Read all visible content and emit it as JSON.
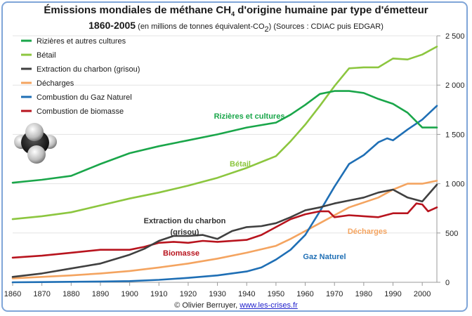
{
  "title_main": "Émissions mondiales de méthane CH",
  "title_sub4": "4",
  "title_end": " d'origine humaine par type d'émetteur",
  "subtitle_years": "1860-2005",
  "subtitle_units": " (en millions de tonnes équivalent-CO",
  "subtitle_sub2": "2",
  "subtitle_sources": ") (Sources : CDIAC puis EDGAR)",
  "credit_text": "© Olivier Berruyer, ",
  "credit_link": "www.les-crises.fr",
  "icon": "methane-molecule-icon",
  "chart_data": {
    "type": "line",
    "title": "Émissions mondiales de méthane CH4 d'origine humaine par type d'émetteur",
    "subtitle": "1860-2005 (en millions de tonnes équivalent-CO2) (Sources : CDIAC puis EDGAR)",
    "xlabel": "",
    "ylabel": "",
    "xlim": [
      1860,
      2005
    ],
    "ylim": [
      0,
      2500
    ],
    "xticks": [
      1860,
      1870,
      1880,
      1890,
      1900,
      1910,
      1920,
      1930,
      1940,
      1950,
      1960,
      1970,
      1980,
      1990,
      2000
    ],
    "yticks": [
      0,
      500,
      1000,
      1500,
      2000,
      2500
    ],
    "ytick_labels": [
      "0",
      "500",
      "1 000",
      "1 500",
      "2 000",
      "2 500"
    ],
    "y_axis_side": "right",
    "grid": "horizontal",
    "legend_position": "top-left",
    "series": [
      {
        "name": "Rizières et autres cultures",
        "color": "#1aa64a",
        "annotation": "Rizières et cultures",
        "x": [
          1860,
          1870,
          1880,
          1890,
          1900,
          1910,
          1920,
          1930,
          1940,
          1950,
          1955,
          1960,
          1965,
          1970,
          1975,
          1980,
          1985,
          1990,
          1995,
          2000,
          2005
        ],
        "values": [
          1010,
          1040,
          1080,
          1200,
          1310,
          1380,
          1440,
          1500,
          1570,
          1620,
          1700,
          1800,
          1910,
          1940,
          1940,
          1920,
          1860,
          1810,
          1720,
          1570,
          1570
        ]
      },
      {
        "name": "Bétail",
        "color": "#8cc63f",
        "annotation": "Bétail",
        "x": [
          1860,
          1870,
          1880,
          1890,
          1900,
          1910,
          1920,
          1930,
          1940,
          1950,
          1955,
          1960,
          1965,
          1970,
          1975,
          1980,
          1985,
          1990,
          1995,
          2000,
          2005
        ],
        "values": [
          640,
          670,
          710,
          780,
          850,
          910,
          980,
          1060,
          1160,
          1280,
          1430,
          1600,
          1790,
          1990,
          2170,
          2180,
          2180,
          2270,
          2260,
          2310,
          2390
        ]
      },
      {
        "name": "Extraction du charbon (grisou)",
        "color": "#404040",
        "annotation": "Extraction du charbon (grisou)",
        "x": [
          1860,
          1870,
          1880,
          1890,
          1900,
          1905,
          1910,
          1915,
          1920,
          1925,
          1930,
          1935,
          1940,
          1945,
          1950,
          1955,
          1960,
          1965,
          1970,
          1975,
          1980,
          1985,
          1990,
          1995,
          2000,
          2005
        ],
        "values": [
          55,
          90,
          140,
          190,
          280,
          340,
          420,
          470,
          470,
          480,
          440,
          520,
          560,
          570,
          600,
          660,
          730,
          760,
          800,
          830,
          860,
          910,
          940,
          860,
          820,
          990
        ]
      },
      {
        "name": "Décharges",
        "color": "#f4a460",
        "annotation": "Décharges",
        "x": [
          1860,
          1870,
          1880,
          1890,
          1900,
          1910,
          1920,
          1930,
          1940,
          1950,
          1955,
          1960,
          1965,
          1970,
          1975,
          1980,
          1985,
          1990,
          1995,
          2000,
          2005
        ],
        "values": [
          40,
          55,
          70,
          90,
          115,
          150,
          190,
          240,
          300,
          370,
          440,
          520,
          600,
          680,
          760,
          810,
          860,
          940,
          1000,
          1000,
          1030
        ]
      },
      {
        "name": "Combustion du Gaz Naturel",
        "color": "#1f6fb5",
        "annotation": "Gaz Naturel",
        "x": [
          1860,
          1870,
          1880,
          1890,
          1900,
          1910,
          1920,
          1930,
          1940,
          1945,
          1950,
          1955,
          1960,
          1965,
          1970,
          1975,
          1980,
          1985,
          1988,
          1990,
          1995,
          2000,
          2005
        ],
        "values": [
          0,
          2,
          5,
          8,
          12,
          25,
          45,
          70,
          110,
          150,
          230,
          330,
          480,
          720,
          970,
          1200,
          1290,
          1420,
          1460,
          1440,
          1550,
          1650,
          1790
        ]
      },
      {
        "name": "Combustion de biomasse",
        "color": "#b8141e",
        "annotation": "Biomasse",
        "x": [
          1860,
          1870,
          1880,
          1890,
          1900,
          1905,
          1910,
          1915,
          1920,
          1925,
          1930,
          1940,
          1945,
          1950,
          1955,
          1960,
          1965,
          1968,
          1970,
          1975,
          1980,
          1985,
          1990,
          1995,
          1998,
          2000,
          2002,
          2005
        ],
        "values": [
          250,
          270,
          300,
          330,
          330,
          360,
          400,
          410,
          400,
          420,
          410,
          430,
          480,
          560,
          640,
          690,
          720,
          720,
          660,
          680,
          670,
          660,
          700,
          700,
          800,
          790,
          720,
          760
        ]
      }
    ]
  }
}
